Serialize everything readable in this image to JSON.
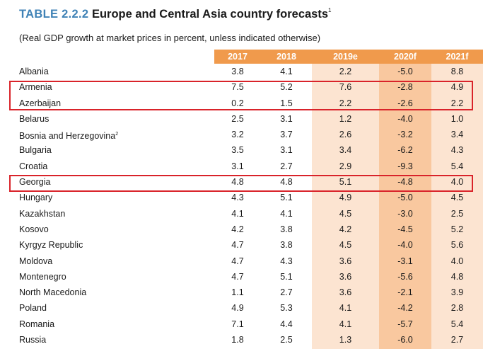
{
  "title": {
    "number": "TABLE 2.2.2",
    "text": "Europe and Central Asia country forecasts",
    "footnote": "1"
  },
  "subtitle": "(Real GDP growth at market prices in percent, unless indicated otherwise)",
  "columns": [
    "2017",
    "2018",
    "2019e",
    "2020f",
    "2021f"
  ],
  "rows": [
    {
      "country": "Albania",
      "note": "",
      "values": [
        "3.8",
        "4.1",
        "2.2",
        "-5.0",
        "8.8"
      ]
    },
    {
      "country": "Armenia",
      "note": "",
      "values": [
        "7.5",
        "5.2",
        "7.6",
        "-2.8",
        "4.9"
      ]
    },
    {
      "country": "Azerbaijan",
      "note": "",
      "values": [
        "0.2",
        "1.5",
        "2.2",
        "-2.6",
        "2.2"
      ]
    },
    {
      "country": "Belarus",
      "note": "",
      "values": [
        "2.5",
        "3.1",
        "1.2",
        "-4.0",
        "1.0"
      ]
    },
    {
      "country": "Bosnia and Herzegovina",
      "note": "2",
      "values": [
        "3.2",
        "3.7",
        "2.6",
        "-3.2",
        "3.4"
      ]
    },
    {
      "country": "Bulgaria",
      "note": "",
      "values": [
        "3.5",
        "3.1",
        "3.4",
        "-6.2",
        "4.3"
      ]
    },
    {
      "country": "Croatia",
      "note": "",
      "values": [
        "3.1",
        "2.7",
        "2.9",
        "-9.3",
        "5.4"
      ]
    },
    {
      "country": "Georgia",
      "note": "",
      "values": [
        "4.8",
        "4.8",
        "5.1",
        "-4.8",
        "4.0"
      ]
    },
    {
      "country": "Hungary",
      "note": "",
      "values": [
        "4.3",
        "5.1",
        "4.9",
        "-5.0",
        "4.5"
      ]
    },
    {
      "country": "Kazakhstan",
      "note": "",
      "values": [
        "4.1",
        "4.1",
        "4.5",
        "-3.0",
        "2.5"
      ]
    },
    {
      "country": "Kosovo",
      "note": "",
      "values": [
        "4.2",
        "3.8",
        "4.2",
        "-4.5",
        "5.2"
      ]
    },
    {
      "country": "Kyrgyz Republic",
      "note": "",
      "values": [
        "4.7",
        "3.8",
        "4.5",
        "-4.0",
        "5.6"
      ]
    },
    {
      "country": "Moldova",
      "note": "",
      "values": [
        "4.7",
        "4.3",
        "3.6",
        "-3.1",
        "4.0"
      ]
    },
    {
      "country": "Montenegro",
      "note": "",
      "values": [
        "4.7",
        "5.1",
        "3.6",
        "-5.6",
        "4.8"
      ]
    },
    {
      "country": "North Macedonia",
      "note": "",
      "values": [
        "1.1",
        "2.7",
        "3.6",
        "-2.1",
        "3.9"
      ]
    },
    {
      "country": "Poland",
      "note": "",
      "values": [
        "4.9",
        "5.3",
        "4.1",
        "-4.2",
        "2.8"
      ]
    },
    {
      "country": "Romania",
      "note": "",
      "values": [
        "7.1",
        "4.4",
        "4.1",
        "-5.7",
        "5.4"
      ]
    },
    {
      "country": "Russia",
      "note": "",
      "values": [
        "1.8",
        "2.5",
        "1.3",
        "-6.0",
        "2.7"
      ]
    }
  ],
  "colors": {
    "title_number": "#3f82b6",
    "header_bg": "#f09a4c",
    "forecast_light": "#fce4d1",
    "forecast_dark": "#f9c89f",
    "highlight_border": "#d9232a"
  }
}
